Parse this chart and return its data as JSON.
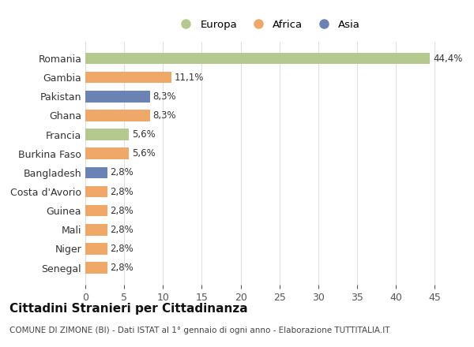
{
  "categories": [
    "Romania",
    "Gambia",
    "Pakistan",
    "Ghana",
    "Francia",
    "Burkina Faso",
    "Bangladesh",
    "Costa d'Avorio",
    "Guinea",
    "Mali",
    "Niger",
    "Senegal"
  ],
  "values": [
    44.4,
    11.1,
    8.3,
    8.3,
    5.6,
    5.6,
    2.8,
    2.8,
    2.8,
    2.8,
    2.8,
    2.8
  ],
  "labels": [
    "44,4%",
    "11,1%",
    "8,3%",
    "8,3%",
    "5,6%",
    "5,6%",
    "2,8%",
    "2,8%",
    "2,8%",
    "2,8%",
    "2,8%",
    "2,8%"
  ],
  "continents": [
    "Europa",
    "Africa",
    "Asia",
    "Africa",
    "Europa",
    "Africa",
    "Asia",
    "Africa",
    "Africa",
    "Africa",
    "Africa",
    "Africa"
  ],
  "colors": {
    "Europa": "#b5c98e",
    "Africa": "#f0a868",
    "Asia": "#6a82b4"
  },
  "legend_labels": [
    "Europa",
    "Africa",
    "Asia"
  ],
  "title": "Cittadini Stranieri per Cittadinanza",
  "subtitle": "COMUNE DI ZIMONE (BI) - Dati ISTAT al 1° gennaio di ogni anno - Elaborazione TUTTITALIA.IT",
  "xlim": [
    0,
    47
  ],
  "xticks": [
    0,
    5,
    10,
    15,
    20,
    25,
    30,
    35,
    40,
    45
  ],
  "bg_color": "#ffffff",
  "grid_color": "#e0e0e0",
  "bar_height": 0.6
}
